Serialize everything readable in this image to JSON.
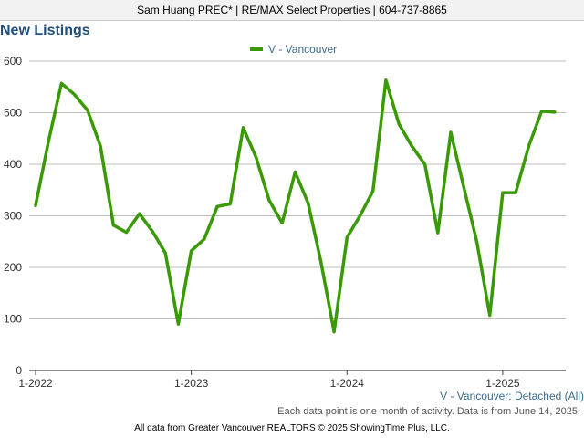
{
  "header": {
    "agent_line": "Sam Huang PREC* | RE/MAX Select Properties | 604-737-8865"
  },
  "chart_data": {
    "type": "line",
    "title": "New Listings",
    "legend_position": "top-center",
    "grid": true,
    "ylim": [
      0,
      600
    ],
    "y_ticks": [
      0,
      100,
      200,
      300,
      400,
      500,
      600
    ],
    "x_tick_labels": [
      "1-2022",
      "1-2023",
      "1-2024",
      "1-2025"
    ],
    "x_start": "2022-01",
    "series": [
      {
        "name": "V - Vancouver",
        "color": "#3a9a05",
        "x": [
          "2022-01",
          "2022-02",
          "2022-03",
          "2022-04",
          "2022-05",
          "2022-06",
          "2022-07",
          "2022-08",
          "2022-09",
          "2022-10",
          "2022-11",
          "2022-12",
          "2023-01",
          "2023-02",
          "2023-03",
          "2023-04",
          "2023-05",
          "2023-06",
          "2023-07",
          "2023-08",
          "2023-09",
          "2023-10",
          "2023-11",
          "2023-12",
          "2024-01",
          "2024-02",
          "2024-03",
          "2024-04",
          "2024-05",
          "2024-06",
          "2024-07",
          "2024-08",
          "2024-09",
          "2024-10",
          "2024-11",
          "2024-12",
          "2025-01",
          "2025-02",
          "2025-03",
          "2025-04",
          "2025-05"
        ],
        "values": [
          320,
          445,
          557,
          535,
          505,
          435,
          282,
          268,
          304,
          270,
          228,
          90,
          232,
          255,
          318,
          323,
          471,
          413,
          330,
          286,
          385,
          325,
          210,
          75,
          258,
          300,
          348,
          563,
          478,
          435,
          400,
          267,
          462,
          355,
          250,
          107,
          345,
          345,
          435,
          503,
          501
        ]
      }
    ],
    "series_caption": "V - Vancouver: Detached (All)",
    "note": "Each data point is one month of activity. Data is from June 14, 2025."
  },
  "footer": {
    "credit": "All data from Greater Vancouver REALTORS © 2025 ShowingTime Plus, LLC."
  }
}
